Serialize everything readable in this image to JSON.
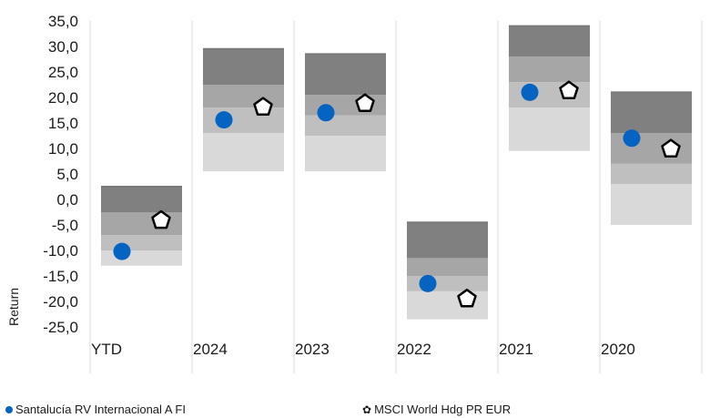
{
  "chart_data": {
    "type": "scatter",
    "ylabel": "Return",
    "ylim": [
      -25,
      35
    ],
    "yticks": [
      "35,0",
      "30,0",
      "25,0",
      "20,0",
      "15,0",
      "10,0",
      "5,0",
      "0,0",
      "-5,0",
      "-10,0",
      "-15,0",
      "-20,0",
      "-25,0"
    ],
    "categories": [
      "YTD",
      "2024",
      "2023",
      "2022",
      "2021",
      "2020"
    ],
    "quartile_bands": [
      {
        "category": "YTD",
        "min": -13.0,
        "q1": -10.0,
        "median": -7.0,
        "q3": -2.5,
        "max": 2.5
      },
      {
        "category": "2024",
        "min": 5.5,
        "q1": 13.0,
        "median": 18.0,
        "q3": 22.5,
        "max": 29.5
      },
      {
        "category": "2023",
        "min": 5.5,
        "q1": 12.5,
        "median": 16.5,
        "q3": 20.5,
        "max": 28.5
      },
      {
        "category": "2022",
        "min": -23.5,
        "q1": -18.0,
        "median": -15.0,
        "q3": -11.5,
        "max": -4.5
      },
      {
        "category": "2021",
        "min": 9.5,
        "q1": 18.0,
        "median": 23.0,
        "q3": 28.0,
        "max": 34.0
      },
      {
        "category": "2020",
        "min": -5.0,
        "q1": 3.0,
        "median": 7.0,
        "q3": 13.0,
        "max": 21.0
      }
    ],
    "band_colors": [
      "#d9d9d9",
      "#bfbfbf",
      "#a6a6a6",
      "#808080"
    ],
    "series": [
      {
        "name": "Santalucía RV Internacional A FI",
        "marker": "circle",
        "color": "#0563c1",
        "values": [
          -10.2,
          15.6,
          17.0,
          -16.5,
          21.0,
          12.0
        ]
      },
      {
        "name": "MSCI World Hdg PR EUR",
        "marker": "pentagon",
        "color": "#000000",
        "values": [
          -4.1,
          18.1,
          18.8,
          -19.5,
          21.3,
          9.9
        ]
      }
    ],
    "legend_position": "bottom",
    "grid": "vertical"
  }
}
